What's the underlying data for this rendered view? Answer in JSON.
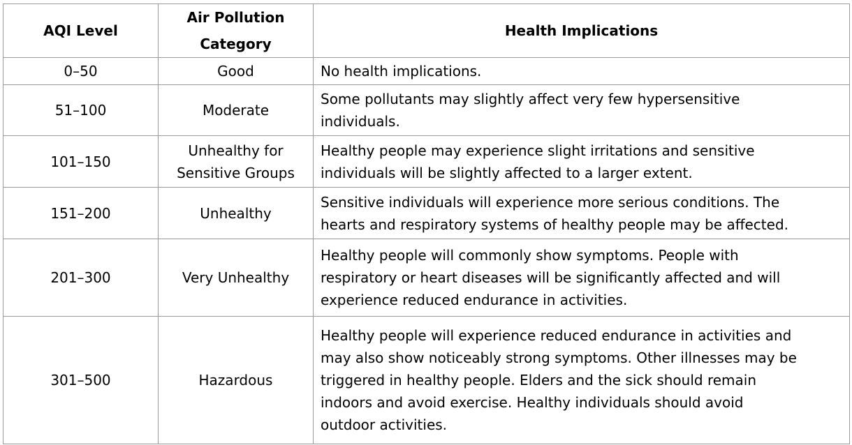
{
  "table": {
    "headers": {
      "level": "AQI Level",
      "category_line1": "Air Pollution",
      "category_line2": "Category",
      "implications": "Health Implications"
    },
    "rows": [
      {
        "level": "0–50",
        "category": [
          "Good"
        ],
        "implications": [
          "No health implications."
        ]
      },
      {
        "level": "51–100",
        "category": [
          "Moderate"
        ],
        "implications": [
          "Some pollutants may slightly affect very few hypersensitive",
          "individuals."
        ]
      },
      {
        "level": "101–150",
        "category": [
          "Unhealthy for",
          "Sensitive Groups"
        ],
        "implications": [
          "Healthy people may experience slight irritations and sensitive",
          "individuals will be slightly affected to a larger extent."
        ]
      },
      {
        "level": "151–200",
        "category": [
          "Unhealthy"
        ],
        "implications": [
          "Sensitive individuals will experience more serious conditions. The",
          "hearts and respiratory systems of healthy people may be affected."
        ]
      },
      {
        "level": "201–300",
        "category": [
          "Very Unhealthy"
        ],
        "implications": [
          "Healthy people will commonly show symptoms. People with",
          "respiratory or heart diseases will be significantly affected and will",
          "experience reduced endurance in activities."
        ]
      },
      {
        "level": "301–500",
        "category": [
          "Hazardous"
        ],
        "implications": [
          "Healthy people will experience reduced endurance in activities and",
          "may also show noticeably strong symptoms. Other illnesses may be",
          "triggered in healthy people. Elders and the sick should remain",
          "indoors and avoid exercise. Healthy individuals should avoid",
          "outdoor activities."
        ]
      }
    ]
  }
}
